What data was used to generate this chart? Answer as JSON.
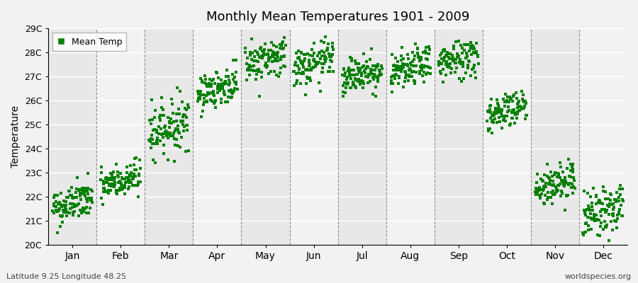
{
  "title": "Monthly Mean Temperatures 1901 - 2009",
  "ylabel": "Temperature",
  "xlabel_labels": [
    "Jan",
    "Feb",
    "Mar",
    "Apr",
    "May",
    "Jun",
    "Jul",
    "Aug",
    "Sep",
    "Oct",
    "Nov",
    "Dec"
  ],
  "bottom_left_text": "Latitude 9.25 Longitude 48.25",
  "bottom_right_text": "worldspecies.org",
  "ylim": [
    20.0,
    29.0
  ],
  "ytick_labels": [
    "20C",
    "21C",
    "22C",
    "23C",
    "24C",
    "25C",
    "26C",
    "27C",
    "28C",
    "29C"
  ],
  "ytick_values": [
    20,
    21,
    22,
    23,
    24,
    25,
    26,
    27,
    28,
    29
  ],
  "dot_color": "#008000",
  "background_color": "#f2f2f2",
  "plot_bg_alt_color": "#e8e8e8",
  "legend_label": "Mean Temp",
  "year_start": 1901,
  "year_end": 2009,
  "monthly_means": [
    21.5,
    22.4,
    24.7,
    26.3,
    27.5,
    27.3,
    26.9,
    27.1,
    27.5,
    25.4,
    22.3,
    21.2
  ],
  "monthly_stds": [
    0.4,
    0.38,
    0.55,
    0.38,
    0.42,
    0.42,
    0.38,
    0.38,
    0.42,
    0.38,
    0.42,
    0.5
  ],
  "warming_trend": 0.004,
  "seed": 42
}
